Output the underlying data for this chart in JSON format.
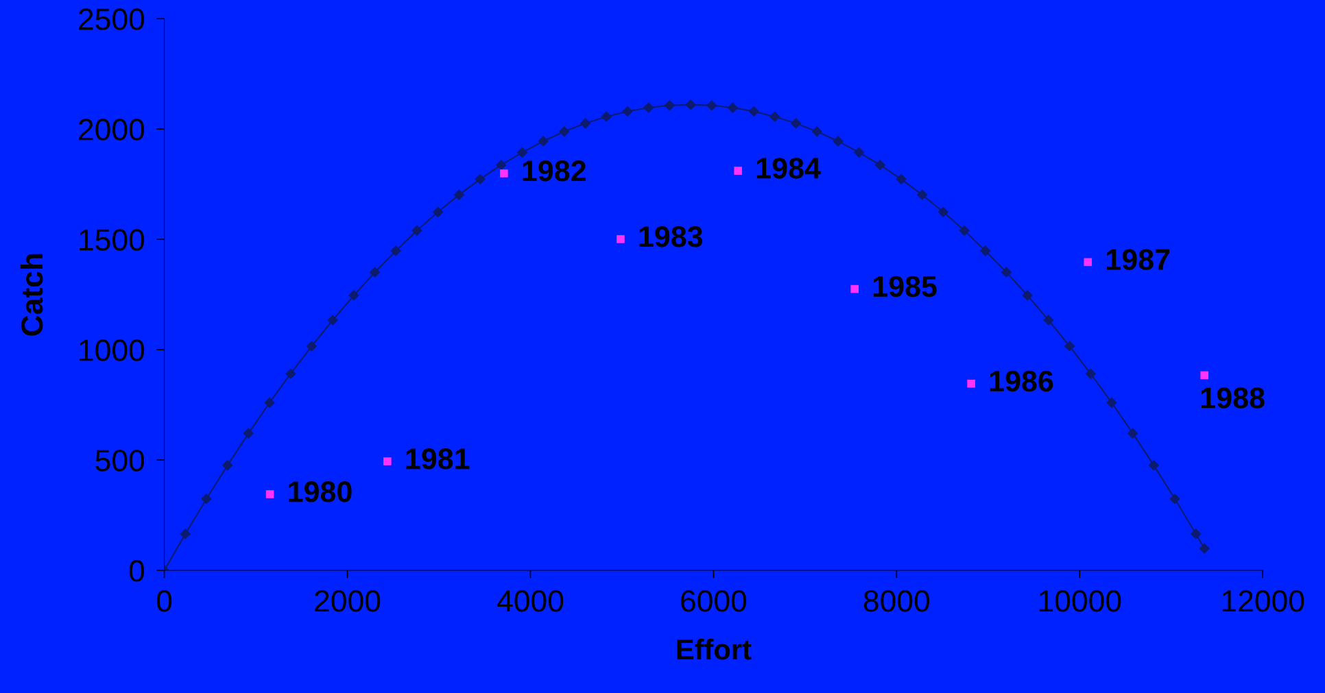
{
  "chart_data": {
    "type": "scatter",
    "xlabel": "Effort",
    "ylabel": "Catch",
    "xlim": [
      0,
      12000
    ],
    "xticks": [
      0,
      2000,
      4000,
      6000,
      8000,
      10000,
      12000
    ],
    "ylim": [
      0,
      2500
    ],
    "yticks": [
      0,
      500,
      1000,
      1500,
      2000,
      2500
    ],
    "grid": false,
    "legend": false,
    "series": [
      {
        "type": "line",
        "color": "#0d1b6e",
        "marker": "diamond",
        "x": [
          0,
          230,
          460,
          690,
          920,
          1150,
          1380,
          1610,
          1840,
          2070,
          2300,
          2530,
          2760,
          2990,
          3220,
          3450,
          3680,
          3910,
          4140,
          4370,
          4600,
          4830,
          5060,
          5290,
          5520,
          5750,
          5980,
          6210,
          6440,
          6670,
          6900,
          7130,
          7360,
          7590,
          7820,
          8050,
          8280,
          8510,
          8740,
          8970,
          9200,
          9430,
          9660,
          9890,
          10120,
          10350,
          10580,
          10810,
          11040,
          11270,
          11363
        ],
        "values": [
          0,
          165,
          324,
          476,
          621,
          760,
          891,
          1016,
          1134,
          1246,
          1351,
          1448,
          1540,
          1624,
          1702,
          1773,
          1837,
          1894,
          1945,
          1989,
          2026,
          2056,
          2080,
          2097,
          2107,
          2110,
          2107,
          2097,
          2080,
          2056,
          2026,
          1989,
          1945,
          1894,
          1837,
          1773,
          1702,
          1624,
          1540,
          1448,
          1351,
          1246,
          1134,
          1016,
          891,
          760,
          621,
          476,
          324,
          165,
          99
        ]
      },
      {
        "color": "#ff33ff",
        "marker": "square",
        "x": [
          1154,
          2437,
          3711,
          4985,
          6268,
          7542,
          8815,
          10090,
          11363
        ],
        "values": [
          345,
          494,
          1799,
          1501,
          1811,
          1275,
          846,
          1397,
          884
        ]
      }
    ],
    "annotations": [
      {
        "text": "1980",
        "x": 1154,
        "y": 345
      },
      {
        "text": "1981",
        "x": 2437,
        "y": 494
      },
      {
        "text": "1982",
        "x": 3711,
        "y": 1799
      },
      {
        "text": "1983",
        "x": 4985,
        "y": 1501
      },
      {
        "text": "1984",
        "x": 6268,
        "y": 1811
      },
      {
        "text": "1985",
        "x": 7542,
        "y": 1275
      },
      {
        "text": "1986",
        "x": 8815,
        "y": 846
      },
      {
        "text": "1987",
        "x": 10090,
        "y": 1397
      },
      {
        "text": "1988",
        "x": 11363,
        "y": 884
      }
    ]
  }
}
